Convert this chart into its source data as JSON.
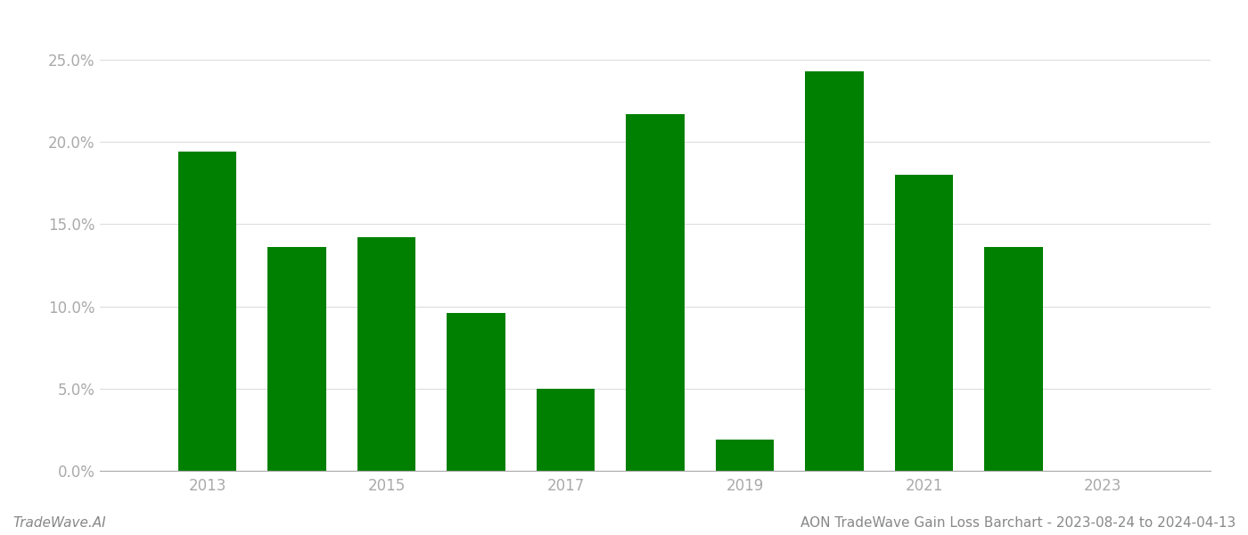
{
  "years": [
    2013,
    2014,
    2015,
    2016,
    2017,
    2018,
    2019,
    2020,
    2021,
    2022
  ],
  "values": [
    0.194,
    0.136,
    0.142,
    0.096,
    0.05,
    0.217,
    0.019,
    0.243,
    0.18,
    0.136
  ],
  "bar_color": "#008000",
  "background_color": "#ffffff",
  "ylim": [
    0,
    0.27
  ],
  "yticks": [
    0.0,
    0.05,
    0.1,
    0.15,
    0.2,
    0.25
  ],
  "xtick_labels": [
    "2013",
    "2015",
    "2017",
    "2019",
    "2021",
    "2023"
  ],
  "xtick_positions": [
    2013,
    2015,
    2017,
    2019,
    2021,
    2023
  ],
  "xlim": [
    2011.8,
    2024.2
  ],
  "bar_width": 0.65,
  "footer_left": "TradeWave.AI",
  "footer_right": "AON TradeWave Gain Loss Barchart - 2023-08-24 to 2024-04-13",
  "tick_fontsize": 12,
  "footer_fontsize": 11,
  "tick_color": "#aaaaaa",
  "grid_color": "#dddddd",
  "spine_color": "#aaaaaa"
}
